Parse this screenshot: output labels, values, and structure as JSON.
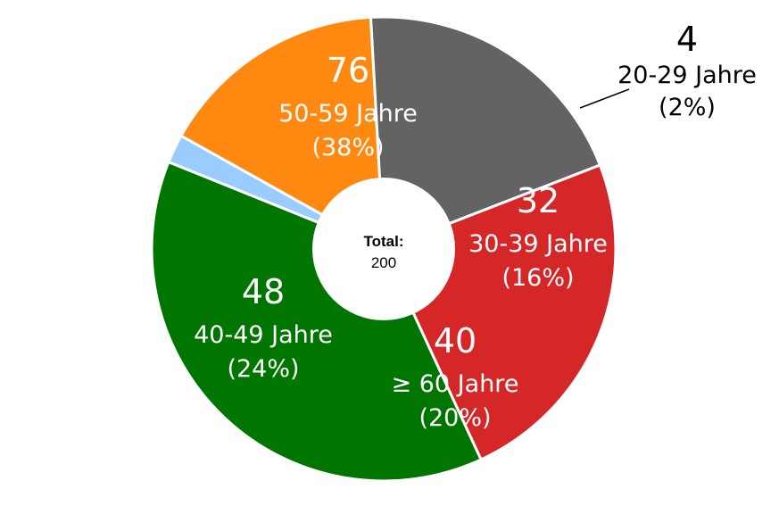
{
  "chart_data": {
    "type": "pie",
    "donut": true,
    "title": "",
    "center": {
      "label": "Total:",
      "value": "200"
    },
    "slices": [
      {
        "label": "20-29 Jahre",
        "value": 4,
        "percent_label": "(2%)",
        "color": "#99ccff",
        "text_color": "#000000",
        "label_outside": true
      },
      {
        "label": "30-39 Jahre",
        "value": 32,
        "percent_label": "(16%)",
        "color": "#ff8811",
        "text_color": "#ffffff",
        "label_outside": false
      },
      {
        "label": "≥ 60 Jahre",
        "value": 40,
        "percent_label": "(20%)",
        "color": "#636363",
        "text_color": "#ffffff",
        "label_outside": false
      },
      {
        "label": "40-49 Jahre",
        "value": 48,
        "percent_label": "(24%)",
        "color": "#d62728",
        "text_color": "#ffffff",
        "label_outside": false
      },
      {
        "label": "50-59 Jahre",
        "value": 76,
        "percent_label": "(38%)",
        "color": "#007500",
        "text_color": "#ffffff",
        "label_outside": false
      }
    ]
  }
}
